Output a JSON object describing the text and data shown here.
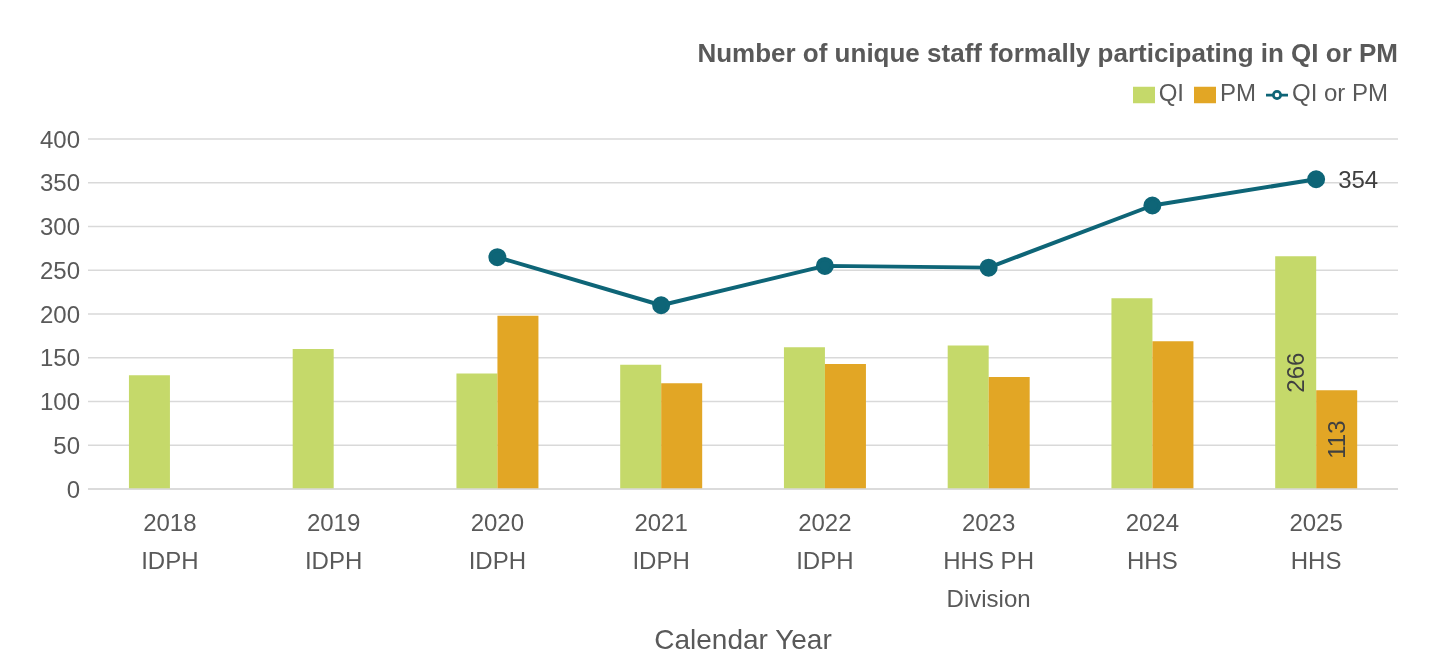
{
  "chart_data": {
    "type": "bar",
    "title": "Number of unique staff formally participating in QI or PM",
    "xlabel": "Calendar Year",
    "categories": [
      "2018\nIDPH",
      "2019\nIDPH",
      "2020\nIDPH",
      "2021\nIDPH",
      "2022\nIDPH",
      "2023\nHHS PH\nDivision",
      "2024\nHHS",
      "2025\nHHS"
    ],
    "series": [
      {
        "name": "QI",
        "color": "#c5d96a",
        "values": [
          130,
          160,
          132,
          142,
          162,
          164,
          218,
          266
        ],
        "value_labels": [
          null,
          null,
          null,
          null,
          null,
          null,
          null,
          "266"
        ]
      },
      {
        "name": "PM",
        "color": "#e2a625",
        "values": [
          null,
          null,
          198,
          121,
          143,
          128,
          169,
          113
        ],
        "value_labels": [
          null,
          null,
          null,
          null,
          null,
          null,
          null,
          "113"
        ]
      },
      {
        "name": "QI or PM",
        "type": "line",
        "color": "#0e6577",
        "marker": "circle",
        "line_style": "solid",
        "values": [
          null,
          null,
          265,
          210,
          255,
          253,
          324,
          354
        ],
        "value_labels": [
          null,
          null,
          null,
          null,
          null,
          null,
          null,
          "354"
        ]
      }
    ],
    "ylim": [
      0,
      400
    ],
    "yticks": [
      0,
      50,
      100,
      150,
      200,
      250,
      300,
      350,
      400
    ],
    "grid": "y",
    "legend": "top right"
  }
}
